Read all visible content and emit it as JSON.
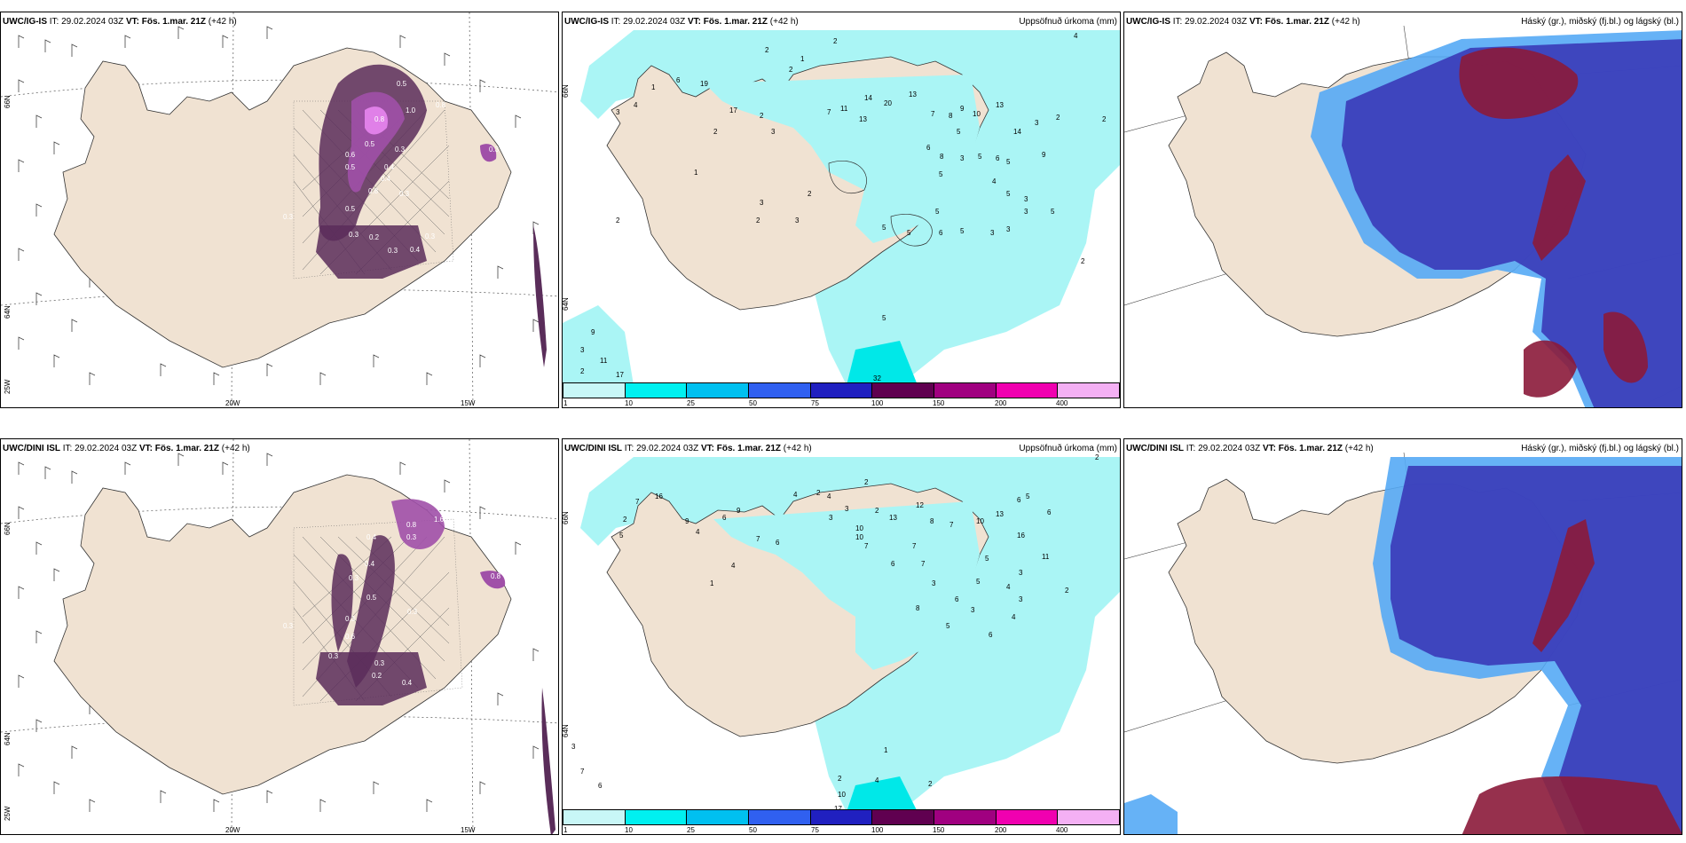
{
  "panels": [
    {
      "id": "r1c1",
      "model": "UWC/IG-IS",
      "it_label": "IT:",
      "it_value": "29.02.2024 03Z",
      "vt_label": "VT:",
      "vt_value": "Fös. 1.mar. 21Z",
      "lead": "(+42 h)",
      "right_title": "",
      "lat_labels": [
        "66N",
        "64N",
        "25W"
      ],
      "lon_labels": [
        "20W",
        "15W"
      ],
      "values": [
        "0.5",
        "1.0",
        "0.8",
        "0.8",
        "0.5",
        "0.3",
        "0.6",
        "0.5",
        "0.4",
        "0.4",
        "0.8",
        "0.3",
        "0.5",
        "0.3",
        "0.2",
        "0.3",
        "0.4",
        "0.3",
        "0.3",
        "0.3"
      ]
    },
    {
      "id": "r1c2",
      "model": "UWC/IG-IS",
      "it_label": "IT:",
      "it_value": "29.02.2024 03Z",
      "vt_label": "VT:",
      "vt_value": "Fös. 1.mar. 21Z",
      "lead": "(+42 h)",
      "right_title": "Uppsöfnuð úrkoma (mm)",
      "lat_labels": [
        "66N",
        "64N"
      ],
      "values": [
        "2",
        "2",
        "1",
        "2",
        "3",
        "4",
        "1",
        "2",
        "6",
        "19",
        "17",
        "2",
        "3",
        "7",
        "11",
        "13",
        "20",
        "14",
        "13",
        "7",
        "8",
        "9",
        "10",
        "5",
        "6",
        "13",
        "3",
        "2",
        "14",
        "3",
        "5",
        "8",
        "5",
        "6",
        "9",
        "5",
        "4",
        "5",
        "3",
        "5",
        "2",
        "3",
        "2",
        "2",
        "3",
        "3",
        "5",
        "6",
        "5",
        "3",
        "3",
        "5",
        "5",
        "2",
        "9",
        "3",
        "11",
        "17",
        "2",
        "32",
        "5",
        "1",
        "2",
        "4"
      ]
    },
    {
      "id": "r1c3",
      "model": "UWC/IG-IS",
      "it_label": "IT:",
      "it_value": "29.02.2024 03Z",
      "vt_label": "VT:",
      "vt_value": "Fös. 1.mar. 21Z",
      "lead": "(+42 h)",
      "right_title": "Háský (gr.), miðský (fj.bl.) og lágský (bl.)"
    },
    {
      "id": "r2c1",
      "model": "UWC/DINI ISL",
      "it_label": "IT:",
      "it_value": "29.02.2024 03Z",
      "vt_label": "VT:",
      "vt_value": "Fös. 1.mar. 21Z",
      "lead": "(+42 h)",
      "right_title": "",
      "lat_labels": [
        "66N",
        "64N",
        "25W"
      ],
      "lon_labels": [
        "20W",
        "15W"
      ],
      "values": [
        "1.6",
        "0.8",
        "0.3",
        "0.4",
        "0.4",
        "0.3",
        "0.5",
        "0.3",
        "0.3",
        "0.6",
        "0.3",
        "0.3",
        "0.2",
        "0.4",
        "0.3",
        "0.8"
      ]
    },
    {
      "id": "r2c2",
      "model": "UWC/DINI ISL",
      "it_label": "IT:",
      "it_value": "29.02.2024 03Z",
      "vt_label": "VT:",
      "vt_value": "Fös. 1.mar. 21Z",
      "lead": "(+42 h)",
      "right_title": "Uppsöfnuð úrkoma (mm)",
      "lat_labels": [
        "66N",
        "64N"
      ],
      "values": [
        "2",
        "4",
        "2",
        "4",
        "3",
        "2",
        "3",
        "2",
        "7",
        "16",
        "5",
        "9",
        "4",
        "7",
        "13",
        "12",
        "8",
        "7",
        "10",
        "13",
        "10",
        "10",
        "7",
        "16",
        "5",
        "6",
        "6",
        "7",
        "5",
        "11",
        "2",
        "7",
        "6",
        "4",
        "3",
        "5",
        "3",
        "4",
        "3",
        "2",
        "1",
        "3",
        "7",
        "6",
        "2",
        "10",
        "4",
        "2",
        "17",
        "1",
        "6",
        "9",
        "6",
        "8",
        "6",
        "5",
        "3",
        "6",
        "4"
      ]
    },
    {
      "id": "r2c3",
      "model": "UWC/DINI ISL",
      "it_label": "IT:",
      "it_value": "29.02.2024 03Z",
      "vt_label": "VT:",
      "vt_value": "Fös. 1.mar. 21Z",
      "lead": "(+42 h)",
      "right_title": "Háský (gr.), miðský (fj.bl.) og lágský (bl.)"
    }
  ],
  "colorbar": {
    "ticks": [
      "1",
      "10",
      "25",
      "50",
      "75",
      "100",
      "150",
      "200",
      "400"
    ],
    "colors": [
      "#c8f7f7",
      "#00f0f0",
      "#00c0f0",
      "#3060f0",
      "#2020c0",
      "#600050",
      "#a00080",
      "#f000b0",
      "#f4b0f4"
    ]
  },
  "colors": {
    "land": "#f0e2d2",
    "sea": "#ffffff",
    "precip_light": "#aaf5f5",
    "precip_mid": "#00e8e8",
    "snow_dark": "#5a2d5a",
    "snow_mid": "#a050a8",
    "snow_light": "#e080e8",
    "cloud_high": "#8b1a3a",
    "cloud_mid": "#3a3ab8",
    "cloud_low": "#55aaf5"
  }
}
